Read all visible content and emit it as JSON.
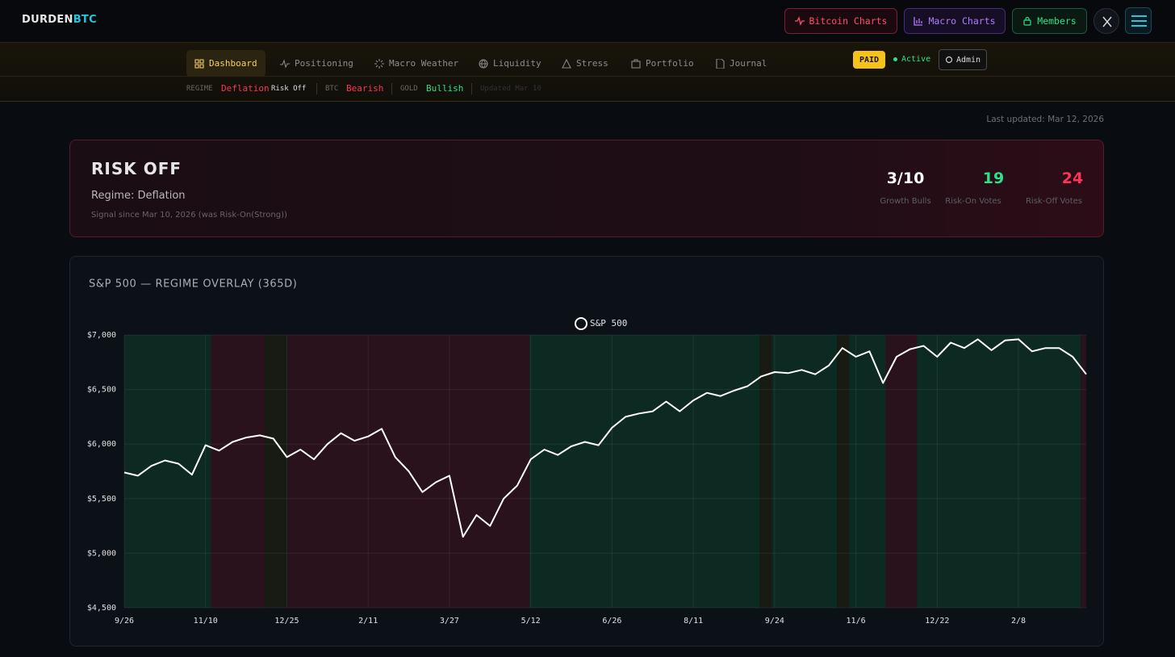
{
  "header": {
    "brand": "DURDEN",
    "brand_accent": "BTC",
    "buttons": [
      "Bitcoin Charts",
      "Macro Charts",
      "Members"
    ]
  },
  "nav": {
    "items": [
      "Dashboard",
      "Positioning",
      "Macro Weather",
      "Liquidity",
      "Stress",
      "Portfolio",
      "Journal"
    ],
    "badge": "PAID",
    "status": "Active",
    "admin": "Admin"
  },
  "ticker": {
    "regime_label": "REGIME",
    "regime": "Deflation",
    "regime_mode": "Risk Off",
    "btc_label": "BTC",
    "btc": "Bearish",
    "gold_label": "GOLD",
    "gold": "Bullish",
    "updated": "Updated Mar 10"
  },
  "last_updated": "Last updated: Mar 12, 2026",
  "signal": {
    "title": "RISK OFF",
    "regime": "Regime: Deflation",
    "since": "Signal since Mar 10, 2026 (was Risk-On(Strong))",
    "stats": [
      {
        "value": "3/10",
        "label": "Growth Bulls"
      },
      {
        "value": 19,
        "label": "Risk-On Votes"
      },
      {
        "value": 24,
        "label": "Risk-Off Votes"
      }
    ]
  },
  "chart_data": {
    "type": "line",
    "title": "S&P 500 — REGIME OVERLAY (365D)",
    "categories": [
      "9/26",
      null,
      null,
      null,
      null,
      null,
      "11/10",
      null,
      null,
      null,
      null,
      null,
      "12/25",
      null,
      null,
      null,
      null,
      null,
      "2/11",
      null,
      null,
      null,
      null,
      null,
      "3/27",
      null,
      null,
      null,
      null,
      null,
      "5/12",
      null,
      null,
      null,
      null,
      null,
      "6/26",
      null,
      null,
      null,
      null,
      null,
      "8/11",
      null,
      null,
      null,
      null,
      null,
      "9/24",
      null,
      null,
      null,
      null,
      null,
      "11/6",
      null,
      null,
      null,
      null,
      null,
      "12/22",
      null,
      null,
      null,
      null,
      null,
      "2/8",
      null,
      null,
      null,
      null,
      null
    ],
    "series": [
      {
        "name": "S&P 500",
        "color": "#ffffff",
        "values": [
          5740,
          5710,
          5800,
          5850,
          5820,
          5720,
          5990,
          5940,
          6020,
          6060,
          6080,
          6050,
          5880,
          5950,
          5860,
          6000,
          6100,
          6030,
          6070,
          6140,
          5880,
          5750,
          5560,
          5650,
          5710,
          5150,
          5350,
          5250,
          5500,
          5620,
          5860,
          5950,
          5900,
          5980,
          6020,
          5990,
          6150,
          6250,
          6280,
          6300,
          6390,
          6300,
          6400,
          6470,
          6440,
          6490,
          6530,
          6620,
          6660,
          6650,
          6680,
          6640,
          6720,
          6880,
          6800,
          6850,
          6560,
          6800,
          6870,
          6900,
          6800,
          6930,
          6880,
          6960,
          6860,
          6950,
          6960,
          6850,
          6880,
          6880,
          6800,
          6640
        ]
      }
    ],
    "bands": [
      {
        "from": 0,
        "to": 6.4,
        "color": "#0c2a22"
      },
      {
        "from": 6.4,
        "to": 10.4,
        "color": "#2a121c"
      },
      {
        "from": 10.4,
        "to": 12.1,
        "color": "#181a14"
      },
      {
        "from": 12.1,
        "to": 29.9,
        "color": "#2a121c"
      },
      {
        "from": 29.9,
        "to": 46.9,
        "color": "#0c2a22"
      },
      {
        "from": 46.9,
        "to": 47.8,
        "color": "#181a14"
      },
      {
        "from": 47.8,
        "to": 52.6,
        "color": "#0c2a22"
      },
      {
        "from": 52.6,
        "to": 53.5,
        "color": "#181a14"
      },
      {
        "from": 53.5,
        "to": 56.2,
        "color": "#0c2a22"
      },
      {
        "from": 56.2,
        "to": 58.5,
        "color": "#2a121c"
      },
      {
        "from": 58.5,
        "to": 70.6,
        "color": "#0c2a22"
      },
      {
        "from": 70.6,
        "to": 71,
        "color": "#2a121c"
      }
    ],
    "ylim": [
      4500,
      7000
    ],
    "yticks": [
      {
        "value": 4500,
        "label": "$4,500"
      },
      {
        "value": 5000,
        "label": "$5,000"
      },
      {
        "value": 5500,
        "label": "$5,500"
      },
      {
        "value": 6000,
        "label": "$6,000"
      },
      {
        "value": 6500,
        "label": "$6,500"
      },
      {
        "value": 7000,
        "label": "$7,000"
      }
    ],
    "grid": true,
    "legend": "top"
  }
}
